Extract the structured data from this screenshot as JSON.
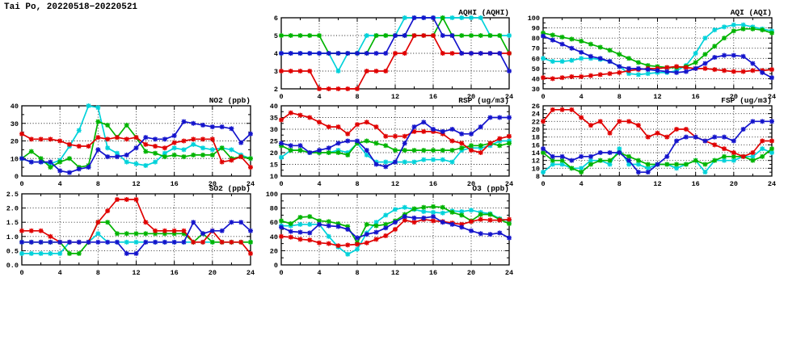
{
  "title": "Tai Po, 20220518−20220521",
  "palette": {
    "red": "#e00000",
    "green": "#00b400",
    "blue": "#1414cc",
    "cyan": "#00d2da"
  },
  "hours_note": "all series sampled hourly, x = 0..24",
  "chart_data": [
    {
      "id": "aqhi",
      "type": "line",
      "title": "AQHI (AQHI)",
      "xlim": [
        0,
        24
      ],
      "xticks": [
        0,
        4,
        8,
        12,
        16,
        20,
        24
      ],
      "x_minor_step": 2,
      "ylim": [
        2,
        6
      ],
      "yticks": [
        2,
        3,
        4,
        5,
        6
      ],
      "ytick_labels": [
        "2",
        "3",
        "4",
        "5",
        "6"
      ],
      "y_minor_step": 0,
      "grid": true,
      "series": [
        {
          "name": "cyan",
          "color": "cyan",
          "values": [
            4,
            4,
            4,
            4,
            4,
            4,
            3,
            4,
            4,
            5,
            5,
            5,
            5,
            6,
            6,
            6,
            6,
            6,
            6,
            6,
            6,
            6,
            5,
            5,
            5
          ]
        },
        {
          "name": "green",
          "color": "green",
          "values": [
            5,
            5,
            5,
            5,
            5,
            4,
            4,
            4,
            4,
            4,
            5,
            5,
            5,
            5,
            5,
            5,
            5,
            6,
            5,
            5,
            5,
            5,
            5,
            5,
            4
          ]
        },
        {
          "name": "red",
          "color": "red",
          "values": [
            3,
            3,
            3,
            3,
            2,
            2,
            2,
            2,
            2,
            3,
            3,
            3,
            4,
            4,
            5,
            5,
            5,
            4,
            4,
            4,
            4,
            4,
            4,
            4,
            4
          ]
        },
        {
          "name": "blue",
          "color": "blue",
          "values": [
            4,
            4,
            4,
            4,
            4,
            4,
            4,
            4,
            4,
            4,
            4,
            4,
            5,
            5,
            6,
            6,
            6,
            5,
            5,
            4,
            4,
            4,
            4,
            4,
            3
          ]
        }
      ]
    },
    {
      "id": "aqi",
      "type": "line",
      "title": "AQI (AQI)",
      "xlim": [
        0,
        24
      ],
      "xticks": [
        0,
        4,
        8,
        12,
        16,
        20,
        24
      ],
      "x_minor_step": 2,
      "ylim": [
        30,
        100
      ],
      "yticks": [
        30,
        40,
        50,
        60,
        70,
        80,
        90,
        100
      ],
      "ytick_labels": [
        "30",
        "40",
        "50",
        "60",
        "70",
        "80",
        "90",
        "100"
      ],
      "y_minor_step": 5,
      "grid": true,
      "series": [
        {
          "name": "cyan",
          "color": "cyan",
          "values": [
            60,
            57,
            57,
            58,
            60,
            60,
            59,
            57,
            52,
            45,
            44,
            45,
            46,
            46,
            48,
            53,
            65,
            80,
            88,
            91,
            93,
            93,
            91,
            89,
            87
          ]
        },
        {
          "name": "green",
          "color": "green",
          "values": [
            85,
            83,
            81,
            79,
            77,
            74,
            71,
            68,
            64,
            60,
            56,
            53,
            52,
            51,
            51,
            52,
            56,
            64,
            72,
            80,
            87,
            89,
            89,
            88,
            85
          ]
        },
        {
          "name": "red",
          "color": "red",
          "values": [
            41,
            40,
            41,
            42,
            42,
            43,
            44,
            45,
            46,
            48,
            49,
            50,
            50,
            51,
            52,
            51,
            50,
            50,
            49,
            48,
            47,
            47,
            48,
            48,
            49
          ]
        },
        {
          "name": "blue",
          "color": "blue",
          "values": [
            82,
            78,
            74,
            70,
            66,
            62,
            60,
            57,
            52,
            50,
            50,
            49,
            48,
            47,
            46,
            47,
            50,
            55,
            61,
            63,
            63,
            62,
            55,
            46,
            41
          ]
        }
      ]
    },
    {
      "id": "no2",
      "type": "line",
      "title": "NO2 (ppb)",
      "xlim": [
        0,
        24
      ],
      "xticks": [
        0,
        4,
        8,
        12,
        16,
        20,
        24
      ],
      "x_minor_step": 2,
      "ylim": [
        0,
        40
      ],
      "yticks": [
        0,
        10,
        20,
        30,
        40
      ],
      "ytick_labels": [
        "0",
        "10",
        "20",
        "30",
        "40"
      ],
      "y_minor_step": 5,
      "grid": true,
      "series": [
        {
          "name": "cyan",
          "color": "cyan",
          "values": [
            10,
            8,
            8,
            7,
            9,
            17,
            26,
            40,
            39,
            16,
            13,
            8,
            7,
            6,
            8,
            13,
            16,
            15,
            18,
            16,
            15,
            16,
            15,
            12,
            10
          ]
        },
        {
          "name": "green",
          "color": "green",
          "values": [
            10,
            14,
            10,
            5,
            8,
            10,
            5,
            6,
            31,
            29,
            22,
            29,
            22,
            14,
            13,
            11,
            12,
            11,
            12,
            12,
            12,
            16,
            10,
            11,
            10
          ]
        },
        {
          "name": "red",
          "color": "red",
          "values": [
            24,
            21,
            21,
            21,
            20,
            18,
            17,
            17,
            22,
            21,
            22,
            21,
            22,
            18,
            17,
            16,
            19,
            20,
            21,
            21,
            21,
            8,
            9,
            11,
            5
          ]
        },
        {
          "name": "blue",
          "color": "blue",
          "values": [
            10,
            8,
            8,
            8,
            3,
            2,
            4,
            5,
            15,
            11,
            11,
            12,
            16,
            22,
            21,
            21,
            23,
            31,
            30,
            29,
            28,
            28,
            27,
            19,
            24
          ]
        }
      ]
    },
    {
      "id": "rsp",
      "type": "line",
      "title": "RSP (ug/m3)",
      "xlim": [
        0,
        24
      ],
      "xticks": [
        0,
        4,
        8,
        12,
        16,
        20,
        24
      ],
      "x_minor_step": 2,
      "ylim": [
        10,
        40
      ],
      "yticks": [
        10,
        15,
        20,
        25,
        30,
        35,
        40
      ],
      "ytick_labels": [
        "10",
        "15",
        "20",
        "25",
        "30",
        "35",
        "40"
      ],
      "y_minor_step": 2.5,
      "grid": true,
      "series": [
        {
          "name": "cyan",
          "color": "cyan",
          "values": [
            18,
            21,
            21,
            20,
            20,
            20,
            21,
            20,
            24,
            19,
            16,
            16,
            16,
            16,
            16,
            17,
            17,
            17,
            16,
            21,
            22,
            22,
            23,
            25,
            25
          ]
        },
        {
          "name": "green",
          "color": "green",
          "values": [
            23,
            21,
            21,
            20,
            20,
            20,
            20,
            19,
            24,
            25,
            24,
            23,
            21,
            21,
            21,
            21,
            21,
            21,
            21,
            22,
            23,
            23,
            24,
            23,
            24
          ]
        },
        {
          "name": "red",
          "color": "red",
          "values": [
            34,
            37,
            36,
            35,
            33,
            31,
            31,
            28,
            32,
            33,
            31,
            27,
            27,
            27,
            29,
            29,
            29,
            28,
            25,
            24,
            21,
            20,
            24,
            26,
            27
          ]
        },
        {
          "name": "blue",
          "color": "blue",
          "values": [
            24,
            23,
            23,
            20,
            21,
            22,
            24,
            25,
            25,
            21,
            15,
            14,
            16,
            24,
            31,
            33,
            30,
            29,
            30,
            28,
            28,
            31,
            35,
            35,
            35
          ]
        }
      ]
    },
    {
      "id": "fsp",
      "type": "line",
      "title": "FSP (ug/m3)",
      "xlim": [
        0,
        24
      ],
      "xticks": [
        0,
        4,
        8,
        12,
        16,
        20,
        24
      ],
      "x_minor_step": 2,
      "ylim": [
        8,
        26
      ],
      "yticks": [
        8,
        10,
        12,
        14,
        16,
        18,
        20,
        22,
        24,
        26
      ],
      "ytick_labels": [
        "8",
        "10",
        "12",
        "14",
        "16",
        "18",
        "20",
        "22",
        "24",
        "26"
      ],
      "y_minor_step": 1,
      "grid": true,
      "series": [
        {
          "name": "cyan",
          "color": "cyan",
          "values": [
            9,
            11,
            11,
            10,
            10,
            12,
            12,
            11,
            15,
            11,
            11,
            10,
            11,
            11,
            10,
            11,
            12,
            9,
            12,
            12,
            12,
            13,
            13,
            15,
            14
          ]
        },
        {
          "name": "green",
          "color": "green",
          "values": [
            14,
            12,
            12,
            10,
            9,
            11,
            12,
            12,
            14,
            13,
            12,
            11,
            11,
            11,
            11,
            11,
            12,
            11,
            12,
            13,
            13,
            13,
            12,
            13,
            15
          ]
        },
        {
          "name": "red",
          "color": "red",
          "values": [
            22,
            25,
            25,
            25,
            23,
            21,
            22,
            19,
            22,
            22,
            21,
            18,
            19,
            18,
            20,
            20,
            18,
            17,
            16,
            15,
            14,
            13,
            14,
            17,
            17
          ]
        },
        {
          "name": "blue",
          "color": "blue",
          "values": [
            15,
            13,
            13,
            12,
            13,
            13,
            14,
            14,
            14,
            12,
            9,
            9,
            11,
            13,
            17,
            18,
            18,
            17,
            18,
            18,
            17,
            20,
            22,
            22,
            22
          ]
        }
      ]
    },
    {
      "id": "so2",
      "type": "line",
      "title": "SO2 (ppb)",
      "xlim": [
        0,
        24
      ],
      "xticks": [
        0,
        4,
        8,
        12,
        16,
        20,
        24
      ],
      "x_minor_step": 2,
      "ylim": [
        0,
        2.5
      ],
      "yticks": [
        0,
        0.5,
        1,
        1.5,
        2,
        2.5
      ],
      "ytick_labels": [
        "0.0",
        "0.5",
        "1.0",
        "1.5",
        "2.0",
        "2.5"
      ],
      "y_minor_step": 0,
      "grid": true,
      "series": [
        {
          "name": "cyan",
          "color": "cyan",
          "values": [
            0.4,
            0.4,
            0.4,
            0.4,
            0.4,
            0.8,
            0.8,
            0.8,
            1.1,
            0.8,
            0.8,
            0.8,
            0.8,
            0.8,
            0.8,
            0.8,
            0.8,
            0.8,
            0.8,
            0.8,
            0.8,
            0.8,
            0.8,
            0.8,
            0.8
          ]
        },
        {
          "name": "green",
          "color": "green",
          "values": [
            0.8,
            0.8,
            0.8,
            0.8,
            0.8,
            0.4,
            0.4,
            0.8,
            1.5,
            1.5,
            1.1,
            1.1,
            1.1,
            1.1,
            1.1,
            1.1,
            1.1,
            1.1,
            0.8,
            1.1,
            0.8,
            0.8,
            0.8,
            0.8,
            0.8
          ]
        },
        {
          "name": "red",
          "color": "red",
          "values": [
            1.2,
            1.2,
            1.2,
            1.0,
            0.8,
            0.8,
            0.8,
            0.8,
            1.5,
            1.9,
            2.3,
            2.3,
            2.3,
            1.5,
            1.2,
            1.2,
            1.2,
            1.2,
            0.8,
            0.8,
            1.2,
            0.8,
            0.8,
            0.8,
            0.4
          ]
        },
        {
          "name": "blue",
          "color": "blue",
          "values": [
            0.8,
            0.8,
            0.8,
            0.8,
            0.8,
            0.8,
            0.8,
            0.8,
            0.8,
            0.8,
            0.8,
            0.4,
            0.4,
            0.8,
            0.8,
            0.8,
            0.8,
            0.8,
            1.5,
            1.1,
            1.2,
            1.2,
            1.5,
            1.5,
            1.2
          ]
        }
      ]
    },
    {
      "id": "o3",
      "type": "line",
      "title": "O3 (ppb)",
      "xlim": [
        0,
        24
      ],
      "xticks": [
        0,
        4,
        8,
        12,
        16,
        20,
        24
      ],
      "x_minor_step": 2,
      "ylim": [
        0,
        100
      ],
      "yticks": [
        0,
        20,
        40,
        60,
        80,
        100
      ],
      "ytick_labels": [
        "0",
        "20",
        "40",
        "60",
        "80",
        "100"
      ],
      "y_minor_step": 10,
      "grid": true,
      "series": [
        {
          "name": "cyan",
          "color": "cyan",
          "values": [
            55,
            55,
            57,
            57,
            57,
            40,
            25,
            15,
            22,
            45,
            60,
            70,
            78,
            81,
            78,
            75,
            74,
            73,
            76,
            75,
            77,
            74,
            72,
            65,
            62
          ]
        },
        {
          "name": "green",
          "color": "green",
          "values": [
            62,
            58,
            67,
            68,
            62,
            61,
            58,
            54,
            31,
            57,
            55,
            57,
            62,
            71,
            79,
            81,
            82,
            81,
            74,
            70,
            62,
            71,
            71,
            64,
            58
          ]
        },
        {
          "name": "red",
          "color": "red",
          "values": [
            40,
            39,
            36,
            35,
            31,
            30,
            27,
            28,
            29,
            31,
            36,
            41,
            50,
            63,
            60,
            64,
            62,
            61,
            59,
            57,
            61,
            64,
            63,
            63,
            64
          ]
        },
        {
          "name": "blue",
          "color": "blue",
          "values": [
            53,
            47,
            46,
            45,
            57,
            55,
            54,
            50,
            38,
            43,
            46,
            52,
            60,
            68,
            66,
            66,
            68,
            60,
            57,
            53,
            48,
            44,
            43,
            45,
            38
          ]
        }
      ]
    }
  ]
}
